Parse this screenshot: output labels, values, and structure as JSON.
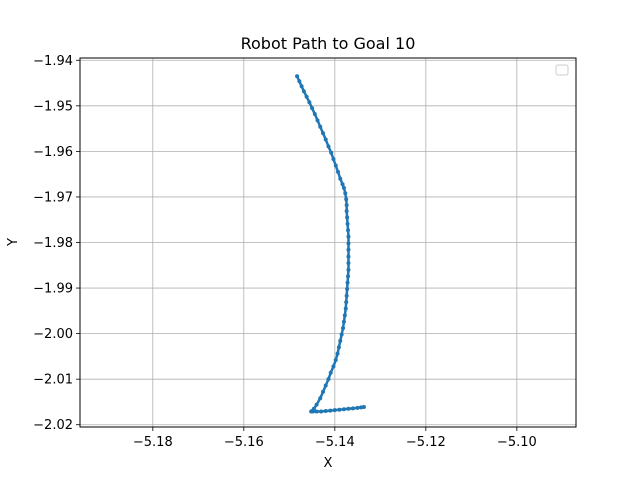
{
  "chart_data": {
    "type": "scatter",
    "title": "Robot Path to Goal 10",
    "xlabel": "X",
    "ylabel": "Y",
    "xlim": [
      -5.196,
      -5.087
    ],
    "ylim": [
      -2.0205,
      -1.9395
    ],
    "xticks": [
      -5.18,
      -5.16,
      -5.14,
      -5.12,
      -5.1
    ],
    "xtick_labels": [
      "−5.18",
      "−5.16",
      "−5.14",
      "−5.12",
      "−5.10"
    ],
    "yticks": [
      -1.94,
      -1.95,
      -1.96,
      -1.97,
      -1.98,
      -1.99,
      -2.0,
      -2.01,
      -2.02
    ],
    "ytick_labels": [
      "−1.94",
      "−1.95",
      "−1.96",
      "−1.97",
      "−1.98",
      "−1.99",
      "−2.00",
      "−2.01",
      "−2.02"
    ],
    "grid": true,
    "legend": "top-right (empty)",
    "color": "#1f77b4",
    "series": [
      {
        "x": [
          -5.1483,
          -5.1478,
          -5.1473,
          -5.1468,
          -5.1462,
          -5.1456,
          -5.145,
          -5.1444,
          -5.1438,
          -5.1432,
          -5.1426,
          -5.142,
          -5.1414,
          -5.1408,
          -5.1403,
          -5.1398,
          -5.1393,
          -5.1388,
          -5.1383,
          -5.138,
          -5.1377,
          -5.1375,
          -5.1374,
          -5.1374,
          -5.1373,
          -5.1372,
          -5.1371,
          -5.137,
          -5.137,
          -5.137,
          -5.137,
          -5.137,
          -5.137,
          -5.1371,
          -5.1372,
          -5.1373,
          -5.1374,
          -5.1375,
          -5.1376,
          -5.1378,
          -5.138,
          -5.1382,
          -5.1385,
          -5.1388,
          -5.1391,
          -5.1394,
          -5.1398,
          -5.1403,
          -5.1409,
          -5.1414,
          -5.142,
          -5.1426,
          -5.1432,
          -5.144,
          -5.1446,
          -5.145,
          -5.1452,
          -5.1448,
          -5.144,
          -5.143,
          -5.142,
          -5.141,
          -5.14,
          -5.139,
          -5.138,
          -5.137,
          -5.136,
          -5.135,
          -5.1342,
          -5.1336
        ],
        "y": [
          -1.9435,
          -1.9446,
          -1.9457,
          -1.9468,
          -1.948,
          -1.9492,
          -1.9505,
          -1.9518,
          -1.9532,
          -1.9546,
          -1.956,
          -1.9574,
          -1.9589,
          -1.9603,
          -1.9617,
          -1.9631,
          -1.9645,
          -1.966,
          -1.9672,
          -1.968,
          -1.9692,
          -1.9705,
          -1.9718,
          -1.9731,
          -1.9745,
          -1.9759,
          -1.9773,
          -1.9787,
          -1.9802,
          -1.9816,
          -1.9831,
          -1.9845,
          -1.986,
          -1.9874,
          -1.9888,
          -1.9902,
          -1.9917,
          -1.9931,
          -1.9945,
          -1.996,
          -1.9974,
          -1.9988,
          -2.0002,
          -2.0016,
          -2.003,
          -2.0044,
          -2.0058,
          -2.0072,
          -2.0086,
          -2.01,
          -2.0114,
          -2.0128,
          -2.0142,
          -2.0156,
          -2.0165,
          -2.017,
          -2.0171,
          -2.0171,
          -2.0171,
          -2.0171,
          -2.017,
          -2.0169,
          -2.0168,
          -2.0167,
          -2.0166,
          -2.0165,
          -2.0164,
          -2.0163,
          -2.0162,
          -2.0161
        ]
      }
    ]
  }
}
